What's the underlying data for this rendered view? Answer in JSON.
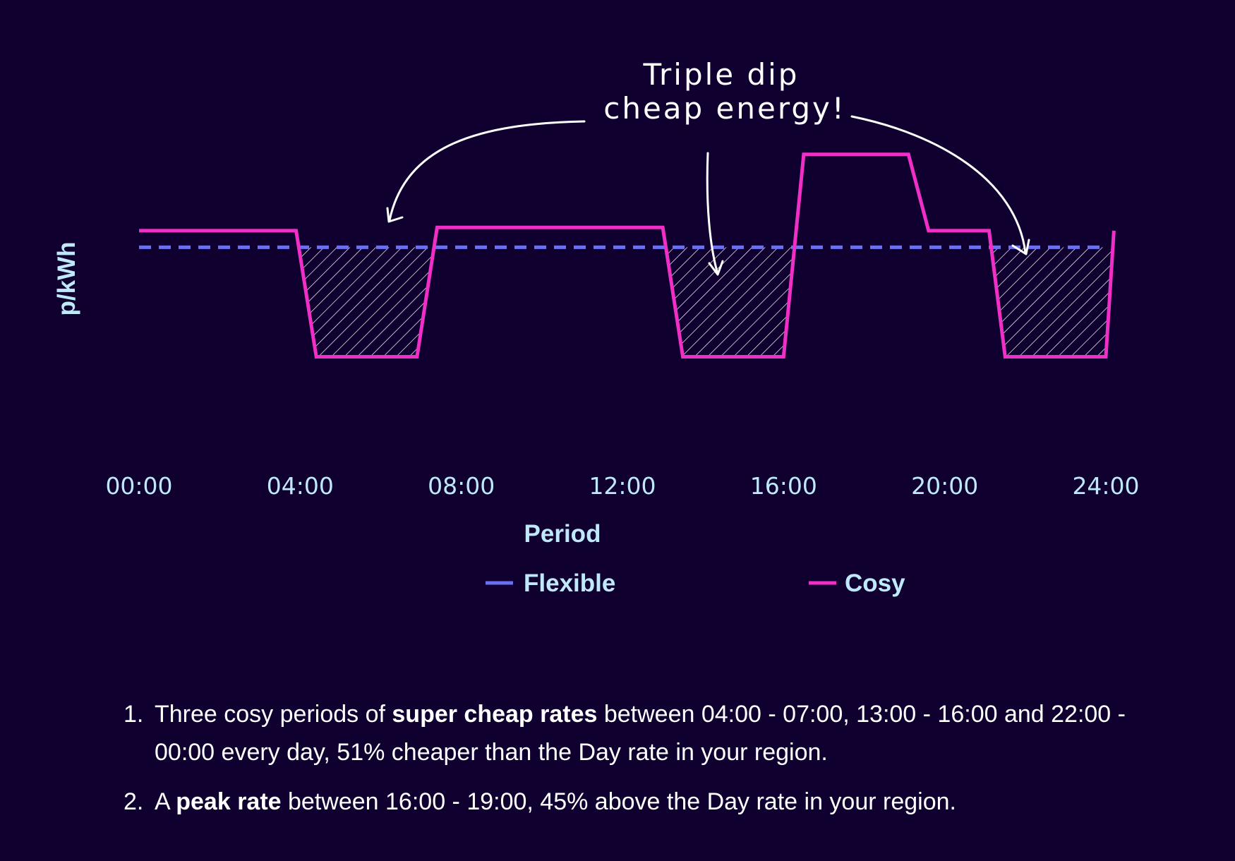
{
  "annotation": {
    "line1": "Triple dip",
    "line2": "cheap energy!"
  },
  "colors": {
    "background": "#100030",
    "flexible": "#6b6ff0",
    "cosy": "#f02fc6",
    "label": "#bfe9fb",
    "text": "#ffffff"
  },
  "chart_data": {
    "type": "line",
    "xlabel": "Period",
    "ylabel": "p/kWh",
    "x_ticks": [
      "00:00",
      "04:00",
      "08:00",
      "12:00",
      "16:00",
      "20:00",
      "24:00"
    ],
    "xlim": [
      0,
      24
    ],
    "ylim": [
      0,
      1
    ],
    "y_tick_labels_shown": false,
    "legend_position": "bottom",
    "series": [
      {
        "name": "Flexible",
        "style": "dashed",
        "points": [
          [
            0,
            0.68
          ],
          [
            24,
            0.68
          ]
        ]
      },
      {
        "name": "Cosy",
        "style": "solid",
        "points": [
          [
            0,
            0.73
          ],
          [
            3.9,
            0.73
          ],
          [
            4.4,
            0.35
          ],
          [
            6.9,
            0.35
          ],
          [
            7.4,
            0.74
          ],
          [
            13,
            0.74
          ],
          [
            13.5,
            0.35
          ],
          [
            16,
            0.35
          ],
          [
            16.5,
            0.96
          ],
          [
            19.1,
            0.96
          ],
          [
            19.6,
            0.73
          ],
          [
            21.1,
            0.73
          ],
          [
            21.5,
            0.35
          ],
          [
            24,
            0.35
          ],
          [
            24.2,
            0.73
          ]
        ]
      }
    ],
    "shaded_regions": [
      {
        "from": "04:00",
        "to": "07:00"
      },
      {
        "from": "13:00",
        "to": "16:00"
      },
      {
        "from": "22:00",
        "to": "24:00"
      }
    ]
  },
  "notes": [
    {
      "num": "1.",
      "pre": "Three cosy periods of ",
      "bold": "super cheap rates",
      "post": " between 04:00 - 07:00, 13:00 - 16:00 and 22:00 - 00:00 every day, 51% cheaper than the Day rate in your region."
    },
    {
      "num": "2.",
      "pre": "A ",
      "bold": "peak rate",
      "post": " between 16:00 - 19:00, 45% above the Day rate in your region."
    }
  ]
}
